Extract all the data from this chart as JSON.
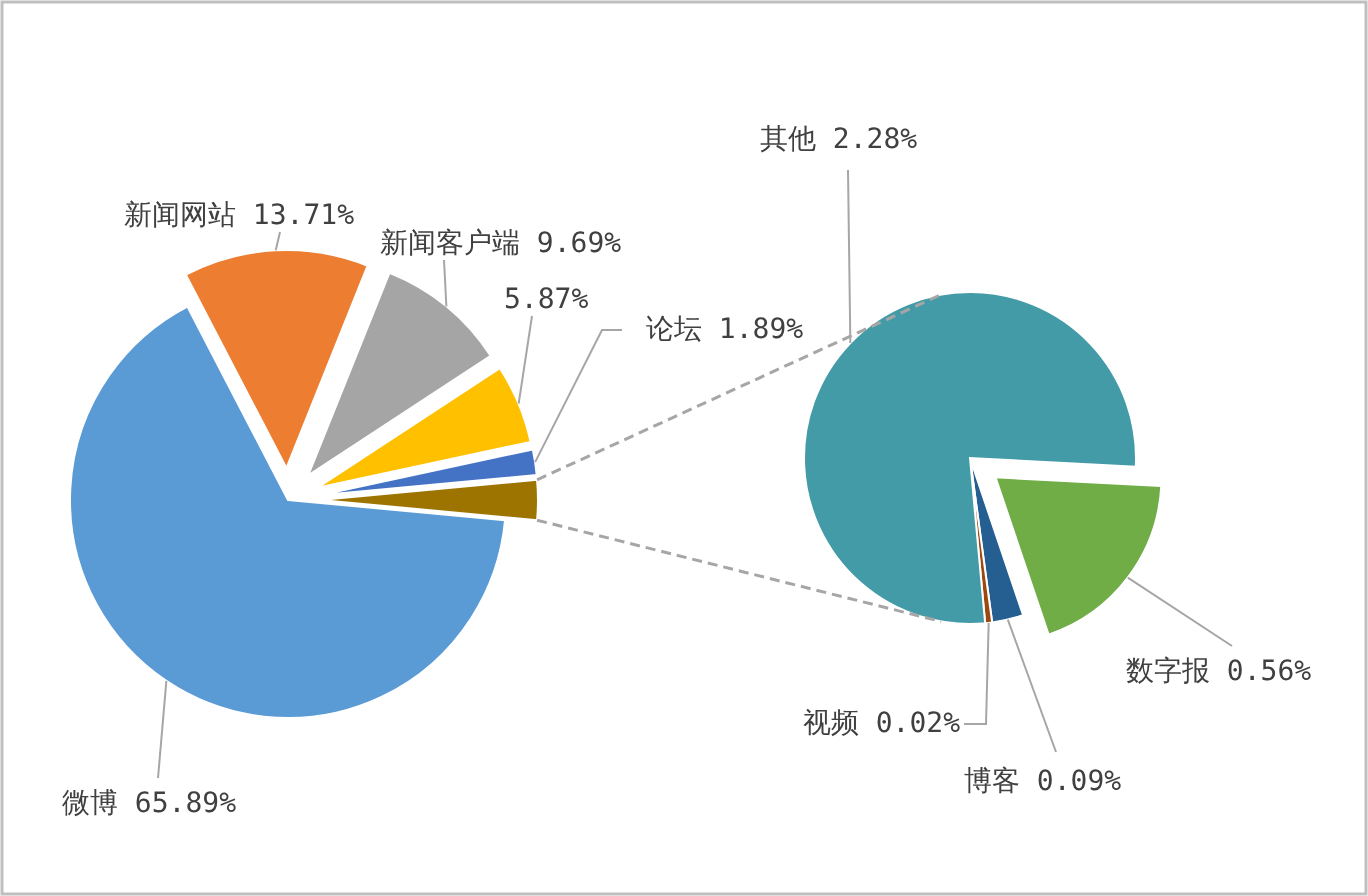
{
  "chart_data": [
    {
      "type": "pie",
      "categories": [
        "微博",
        "新闻网站",
        "新闻客户端",
        null,
        "论坛",
        null
      ],
      "values": [
        65.89,
        13.71,
        9.69,
        5.87,
        1.89,
        2.95
      ],
      "colors": [
        "#5b9bd5",
        "#ed7d31",
        "#a5a5a5",
        "#ffc000",
        "#4472c4",
        "#9e7400"
      ],
      "value_labels": [
        "65.89%",
        "13.71%",
        "9.69%",
        "5.87%",
        "1.89%",
        null
      ]
    },
    {
      "type": "pie",
      "categories": [
        "数字报",
        "博客",
        "视频",
        "其他"
      ],
      "values": [
        0.56,
        0.09,
        0.02,
        2.28
      ],
      "colors": [
        "#70ad47",
        "#255e91",
        "#9e480e",
        "#439ba8"
      ],
      "value_labels": [
        "0.56%",
        "0.09%",
        "0.02%",
        "2.28%"
      ]
    }
  ]
}
